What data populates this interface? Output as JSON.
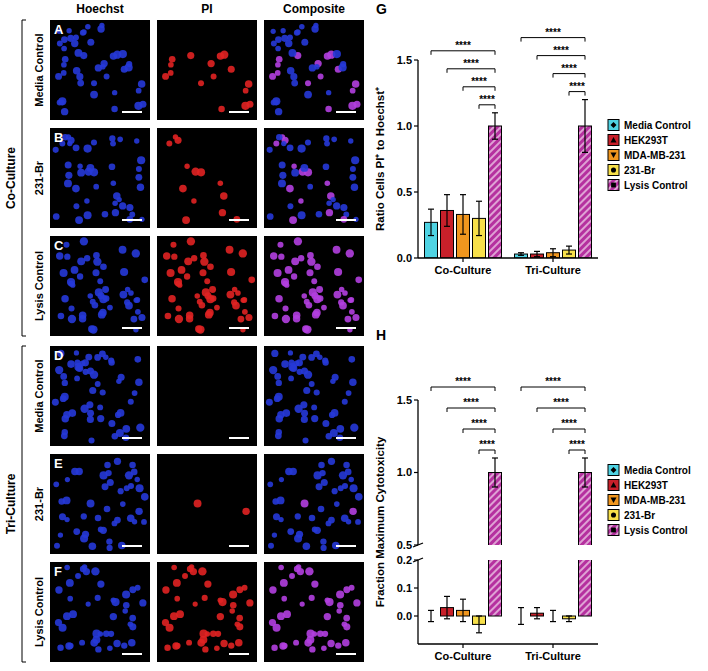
{
  "figure": {
    "columns": [
      "Hoechst",
      "PI",
      "Composite"
    ],
    "chart_letters": [
      "G",
      "H"
    ],
    "groups": [
      {
        "label": "Co-Culture",
        "rows": [
          {
            "letter": "A",
            "label": "Media Control"
          },
          {
            "letter": "B",
            "label": "231-Br"
          },
          {
            "letter": "C",
            "label": "Lysis Control"
          }
        ]
      },
      {
        "label": "Tri-Culture",
        "rows": [
          {
            "letter": "D",
            "label": "Media Control"
          },
          {
            "letter": "E",
            "label": "231-Br"
          },
          {
            "letter": "F",
            "label": "Lysis Control"
          }
        ]
      }
    ]
  },
  "chart_data": [
    {
      "type": "bar",
      "y_label": "Ratio Cells PI⁺ to Hoechst⁺",
      "categories": [
        "Co-Culture",
        "Tri-Culture"
      ],
      "series": [
        {
          "name": "Media Control",
          "color": "#4fd3e3",
          "marker": "diamond",
          "values": [
            0.27,
            0.03
          ],
          "errors": [
            0.1,
            0.01
          ]
        },
        {
          "name": "HEK293T",
          "color": "#c8202a",
          "marker": "triangle",
          "values": [
            0.36,
            0.03
          ],
          "errors": [
            0.12,
            0.02
          ]
        },
        {
          "name": "MDA-MB-231",
          "color": "#f0961e",
          "marker": "triangle-down",
          "values": [
            0.33,
            0.04
          ],
          "errors": [
            0.15,
            0.03
          ]
        },
        {
          "name": "231-Br",
          "color": "#f7e04a",
          "marker": "circle",
          "values": [
            0.3,
            0.06
          ],
          "errors": [
            0.13,
            0.03
          ]
        },
        {
          "name": "Lysis Control",
          "color": "#b5309f",
          "marker": "square",
          "line_style": "hatched",
          "values": [
            1.0,
            1.0
          ],
          "errors": [
            0.1,
            0.2
          ]
        }
      ],
      "ylim": [
        0,
        1.5
      ],
      "yticks": [
        {
          "value": 0,
          "label": "0.0"
        },
        {
          "value": 0.5,
          "label": "0.5"
        },
        {
          "value": 1,
          "label": "1.0"
        },
        {
          "value": 1.5,
          "label": "1.5"
        }
      ],
      "legend": "right",
      "annotations": [
        {
          "text": "****",
          "category": 0,
          "series": [
            0,
            4
          ]
        },
        {
          "text": "****",
          "category": 0,
          "series": [
            1,
            4
          ]
        },
        {
          "text": "****",
          "category": 0,
          "series": [
            2,
            4
          ]
        },
        {
          "text": "****",
          "category": 0,
          "series": [
            3,
            4
          ]
        },
        {
          "text": "****",
          "category": 1,
          "series": [
            0,
            4
          ]
        },
        {
          "text": "****",
          "category": 1,
          "series": [
            1,
            4
          ]
        },
        {
          "text": "****",
          "category": 1,
          "series": [
            2,
            4
          ]
        },
        {
          "text": "****",
          "category": 1,
          "series": [
            3,
            4
          ]
        }
      ]
    },
    {
      "type": "bar",
      "y_label": "Fraction Maximum Cytotoxicity",
      "categories": [
        "Co-Culture",
        "Tri-Culture"
      ],
      "series": [
        {
          "name": "Media Control",
          "color": "#4fd3e3",
          "marker": "diamond",
          "values": [
            0.0,
            0.0
          ],
          "errors": [
            0.02,
            0.03
          ]
        },
        {
          "name": "HEK293T",
          "color": "#c8202a",
          "marker": "triangle",
          "values": [
            0.03,
            0.01
          ],
          "errors": [
            0.04,
            0.02
          ]
        },
        {
          "name": "MDA-MB-231",
          "color": "#f0961e",
          "marker": "triangle-down",
          "values": [
            0.02,
            0.0
          ],
          "errors": [
            0.04,
            0.02
          ]
        },
        {
          "name": "231-Br",
          "color": "#f7e04a",
          "marker": "circle",
          "values": [
            -0.03,
            -0.01
          ],
          "errors": [
            0.03,
            0.01
          ]
        },
        {
          "name": "Lysis Control",
          "color": "#b5309f",
          "marker": "square",
          "line_style": "hatched",
          "values": [
            1.0,
            1.0
          ],
          "errors": [
            0.1,
            0.1
          ]
        }
      ],
      "ylim": [
        -0.1,
        1.5
      ],
      "yticks": [
        {
          "value": 0,
          "label": "0.0"
        },
        {
          "value": 0.1,
          "label": "0.1"
        },
        {
          "value": 0.2,
          "label": "0.2"
        },
        {
          "value": 0.5,
          "label": "0.5"
        },
        {
          "value": 1,
          "label": "1.0"
        },
        {
          "value": 1.5,
          "label": "1.5"
        }
      ],
      "legend": "right",
      "annotations": [
        {
          "text": "****",
          "category": 0,
          "series": [
            0,
            4
          ]
        },
        {
          "text": "****",
          "category": 0,
          "series": [
            1,
            4
          ]
        },
        {
          "text": "****",
          "category": 0,
          "series": [
            2,
            4
          ]
        },
        {
          "text": "****",
          "category": 0,
          "series": [
            3,
            4
          ]
        },
        {
          "text": "****",
          "category": 1,
          "series": [
            0,
            4
          ]
        },
        {
          "text": "****",
          "category": 1,
          "series": [
            1,
            4
          ]
        },
        {
          "text": "****",
          "category": 1,
          "series": [
            2,
            4
          ]
        },
        {
          "text": "****",
          "category": 1,
          "series": [
            3,
            4
          ]
        }
      ]
    }
  ]
}
